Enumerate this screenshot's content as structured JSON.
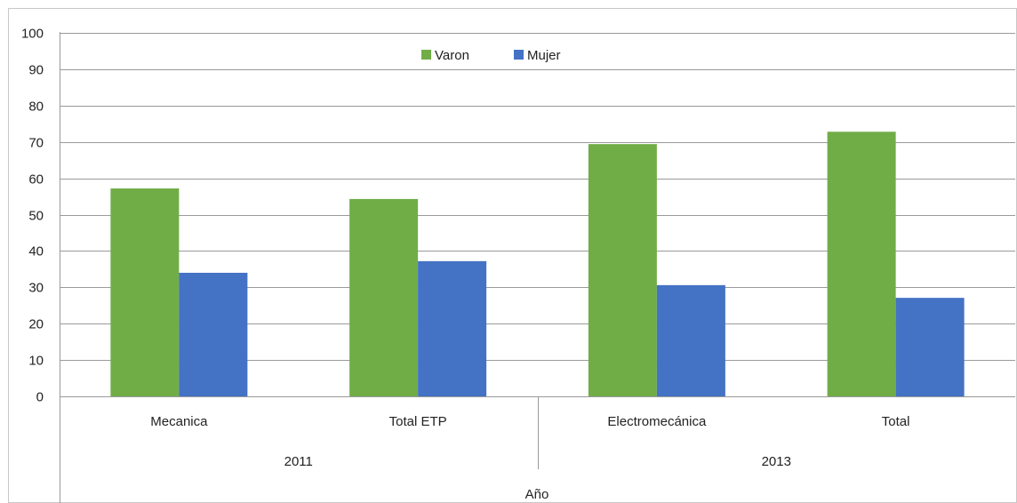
{
  "chart_data": {
    "type": "bar",
    "title": "",
    "ylabel": "",
    "xlabel": "Año",
    "ylim": [
      0,
      100
    ],
    "yticks": [
      0,
      10,
      20,
      30,
      40,
      50,
      60,
      70,
      80,
      90,
      100
    ],
    "grid": true,
    "legend_position": "top-center",
    "groups": [
      {
        "label": "2011",
        "categories": [
          "Mecanica",
          "Total ETP"
        ]
      },
      {
        "label": "2013",
        "categories": [
          "Electromecánica",
          "Total"
        ]
      }
    ],
    "categories": [
      "Mecanica",
      "Total ETP",
      "Electromecánica",
      "Total"
    ],
    "series": [
      {
        "name": "Varon",
        "color": "#70ad47",
        "values": [
          57.2,
          54.3,
          69.4,
          72.8
        ]
      },
      {
        "name": "Mujer",
        "color": "#4472c4",
        "values": [
          34.0,
          37.2,
          30.6,
          27.1
        ]
      }
    ]
  }
}
